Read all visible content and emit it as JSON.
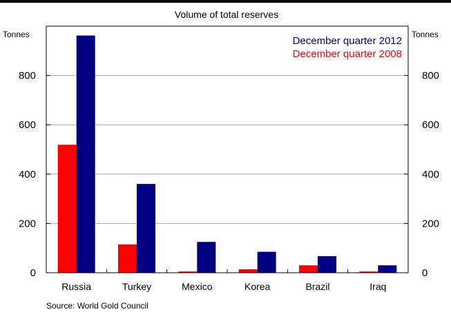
{
  "chart_data": {
    "type": "bar",
    "title": "Volume of total reserves",
    "ylabel_left": "Tonnes",
    "ylabel_right": "Tonnes",
    "ylim": [
      0,
      1000
    ],
    "yticks": [
      0,
      200,
      400,
      600,
      800
    ],
    "grid": true,
    "legend_position": "top-right",
    "categories": [
      "Russia",
      "Turkey",
      "Mexico",
      "Korea",
      "Brazil",
      "Iraq"
    ],
    "series": [
      {
        "name": "December quarter 2008",
        "color": "#ff0000",
        "values": [
          519,
          115,
          5,
          14,
          30,
          5
        ]
      },
      {
        "name": "December quarter 2012",
        "color": "#000080",
        "values": [
          962,
          360,
          125,
          85,
          67,
          30
        ]
      }
    ],
    "legend_order": [
      "December quarter 2012",
      "December quarter 2008"
    ]
  },
  "source": "Source: World Gold Council"
}
